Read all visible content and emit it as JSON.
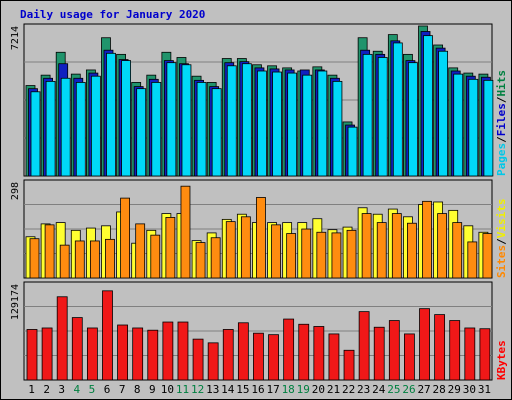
{
  "chart_data": {
    "type": "bar",
    "title": "Daily usage for January 2020",
    "categories": [
      "1",
      "2",
      "3",
      "4",
      "5",
      "6",
      "7",
      "8",
      "9",
      "10",
      "11",
      "12",
      "13",
      "14",
      "15",
      "16",
      "17",
      "18",
      "19",
      "20",
      "21",
      "22",
      "23",
      "24",
      "25",
      "26",
      "27",
      "28",
      "29",
      "30",
      "31"
    ],
    "weekend_days": [
      "4",
      "5",
      "11",
      "12",
      "18",
      "19",
      "25",
      "26"
    ],
    "panels": [
      {
        "name": "hits-files-pages",
        "max_label": "7214",
        "ylim": [
          0,
          7214
        ],
        "legend": [
          {
            "text": "Pages",
            "color": "#00c8e8"
          },
          {
            "text": "/",
            "color": "#000000"
          },
          {
            "text": "Files",
            "color": "#0000cc"
          },
          {
            "text": "/",
            "color": "#000000"
          },
          {
            "text": "Hits",
            "color": "#008040"
          }
        ],
        "series": [
          {
            "name": "Hits",
            "color": "#20946c",
            "values": [
              4350,
              4850,
              5950,
              4900,
              5100,
              6650,
              5850,
              4500,
              4850,
              5950,
              5700,
              4800,
              4500,
              5650,
              5650,
              5350,
              5300,
              5200,
              5050,
              5250,
              4850,
              2600,
              6650,
              6000,
              6800,
              5850,
              7214,
              6300,
              5200,
              4950,
              4900
            ]
          },
          {
            "name": "Files",
            "color": "#1020c0",
            "values": [
              4200,
              4700,
              5400,
              4700,
              4950,
              6050,
              5600,
              4300,
              4650,
              5550,
              5400,
              4600,
              4300,
              5450,
              5500,
              5200,
              5150,
              5100,
              5100,
              5100,
              4700,
              2450,
              6050,
              5850,
              6500,
              5550,
              6950,
              6150,
              5050,
              4800,
              4750
            ]
          },
          {
            "name": "Pages",
            "color": "#00d8f8",
            "values": [
              4050,
              4550,
              4700,
              4500,
              4800,
              5900,
              5550,
              4200,
              4500,
              5450,
              5350,
              4500,
              4200,
              5300,
              5400,
              5050,
              5000,
              4950,
              4850,
              5050,
              4550,
              2350,
              5850,
              5700,
              6400,
              5450,
              6750,
              6000,
              4900,
              4650,
              4600
            ]
          }
        ]
      },
      {
        "name": "visits-sites",
        "max_label": "298",
        "ylim": [
          0,
          298
        ],
        "legend": [
          {
            "text": "Sites",
            "color": "#ff8800"
          },
          {
            "text": "/",
            "color": "#000000"
          },
          {
            "text": "Visits",
            "color": "#f0f000"
          }
        ],
        "series": [
          {
            "name": "Visits",
            "color": "#ffff30",
            "values": [
              128,
              168,
              172,
              148,
              155,
              162,
              205,
              108,
              148,
              200,
              200,
              116,
              140,
              182,
              198,
              172,
              172,
              172,
              172,
              184,
              150,
              158,
              218,
              198,
              214,
              190,
              228,
              236,
              210,
              162,
              142
            ]
          },
          {
            "name": "Sites",
            "color": "#ff8c10",
            "values": [
              122,
              165,
              102,
              115,
              115,
              120,
              248,
              168,
              133,
              188,
              285,
              110,
              125,
              175,
              190,
              250,
              165,
              138,
              152,
              142,
              140,
              148,
              200,
              172,
              200,
              170,
              238,
              200,
              172,
              112,
              138
            ]
          }
        ]
      },
      {
        "name": "kbytes",
        "max_label": "129174",
        "ylim": [
          0,
          129174
        ],
        "legend": [
          {
            "text": "KBytes",
            "color": "#ff0000"
          }
        ],
        "series": [
          {
            "name": "KBytes",
            "color": "#f01818",
            "values": [
              68000,
              70000,
              112000,
              84000,
              70000,
              120000,
              74000,
              70000,
              67000,
              78000,
              78000,
              55000,
              50000,
              68000,
              77000,
              63000,
              61000,
              82000,
              75000,
              72000,
              62000,
              40000,
              92000,
              71000,
              80000,
              62000,
              96000,
              88000,
              80000,
              70000,
              69000
            ]
          }
        ]
      }
    ]
  }
}
